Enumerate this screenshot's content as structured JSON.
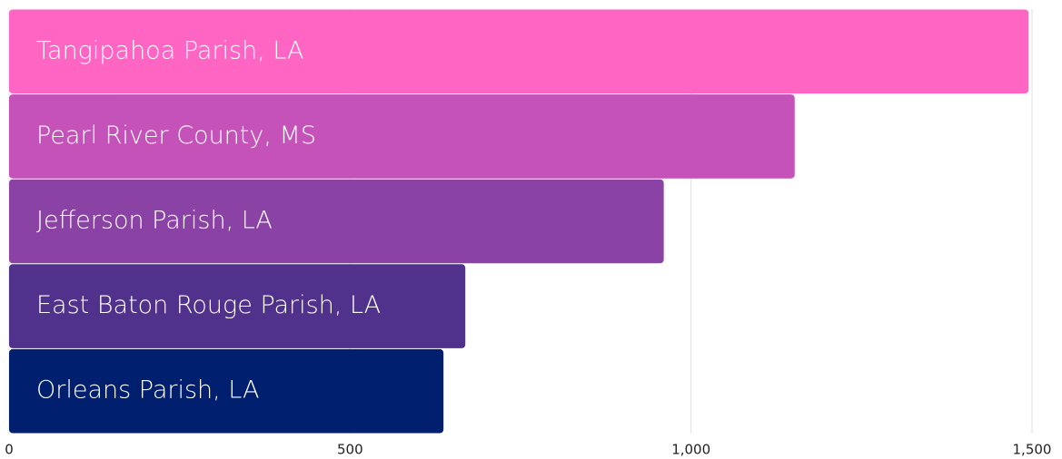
{
  "chart_data": {
    "type": "bar",
    "orientation": "horizontal",
    "categories": [
      "Tangipahoa Parish, LA",
      "Pearl River County, MS",
      "Jefferson Parish, LA",
      "East Baton Rouge Parish, LA",
      "Orleans Parish, LA"
    ],
    "values": [
      1495,
      1152,
      960,
      669,
      637
    ],
    "colors": [
      "#ff66c4",
      "#c452b8",
      "#8a42a4",
      "#50318c",
      "#00206f"
    ],
    "xlim": [
      0,
      1500
    ],
    "xticks": [
      0,
      500,
      {
        "value": 1000,
        "label": "1,000"
      },
      {
        "value": 1500,
        "label": "1,500"
      }
    ],
    "grid": true
  }
}
